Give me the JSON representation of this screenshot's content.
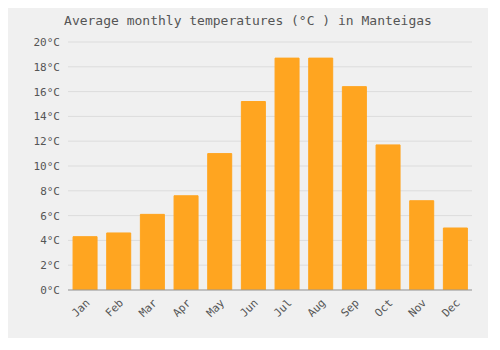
{
  "chart_data": {
    "type": "bar",
    "title": "Average monthly temperatures (°C ) in Manteigas",
    "categories": [
      "Jan",
      "Feb",
      "Mar",
      "Apr",
      "May",
      "Jun",
      "Jul",
      "Aug",
      "Sep",
      "Oct",
      "Nov",
      "Dec"
    ],
    "values": [
      4.3,
      4.6,
      6.1,
      7.6,
      11.0,
      15.2,
      18.7,
      18.7,
      16.4,
      11.7,
      7.2,
      5.0
    ],
    "color": "#FFA520",
    "ylim": [
      0,
      20
    ],
    "yticks": [
      {
        "value": 0,
        "label": "0°C"
      },
      {
        "value": 2,
        "label": "2°C"
      },
      {
        "value": 4,
        "label": "4°C"
      },
      {
        "value": 6,
        "label": "6°C"
      },
      {
        "value": 8,
        "label": "8°C"
      },
      {
        "value": 10,
        "label": "10°C"
      },
      {
        "value": 12,
        "label": "12°C"
      },
      {
        "value": 14,
        "label": "14°C"
      },
      {
        "value": 16,
        "label": "16°C"
      },
      {
        "value": 18,
        "label": "18°C"
      },
      {
        "value": 20,
        "label": "20°C"
      }
    ],
    "grid": true
  }
}
